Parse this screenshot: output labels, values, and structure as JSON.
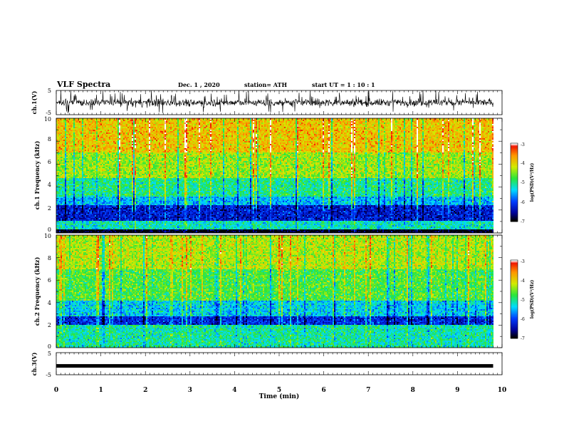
{
  "chart_data": {
    "type": "heatmap",
    "title": "VLF Spectra",
    "header": {
      "date": "Dec. 1 , 2020",
      "station": "station= ATH",
      "start": "start UT = 1 : 10 : 1"
    },
    "xlabel": "Time (min)",
    "xlim": [
      0,
      10
    ],
    "xticks": [
      "0",
      "1",
      "2",
      "3",
      "4",
      "5",
      "6",
      "7",
      "8",
      "9",
      "10"
    ],
    "data_end_min": 9.8,
    "panels": [
      {
        "type": "line",
        "ylabel": "ch.1(V)",
        "ylim": [
          -5,
          5
        ],
        "yticks": [
          "5",
          "-5"
        ],
        "signal": "noisy waveform fluctuating mostly between -2 and +2 V with spikes up to about +5 V"
      },
      {
        "type": "heatmap",
        "ylabel": "ch.1 Frequency (kHz)",
        "ylim": [
          0,
          10
        ],
        "yticks": [
          "0",
          "2",
          "4",
          "6",
          "8",
          "10"
        ],
        "bands": [
          {
            "from_khz": 0,
            "to_khz": 0.3,
            "level": -7.0
          },
          {
            "from_khz": 0.3,
            "to_khz": 1.0,
            "level": -5.2
          },
          {
            "from_khz": 1.0,
            "to_khz": 2.4,
            "level": -6.3
          },
          {
            "from_khz": 2.4,
            "to_khz": 3.2,
            "level": -5.5
          },
          {
            "from_khz": 3.2,
            "to_khz": 4.8,
            "level": -5.0
          },
          {
            "from_khz": 4.8,
            "to_khz": 7.0,
            "level": -4.4
          },
          {
            "from_khz": 7.0,
            "to_khz": 10.0,
            "level": -3.9
          }
        ],
        "colorbar": {
          "label": "log(PSD)(V²/Hz)",
          "range": [
            -7,
            -3
          ],
          "ticks": [
            "-3",
            "-4",
            "-5",
            "-6",
            "-7"
          ]
        }
      },
      {
        "type": "heatmap",
        "ylabel": "ch.2 Frequency (kHz)",
        "ylim": [
          0,
          10
        ],
        "yticks": [
          "0",
          "2",
          "4",
          "6",
          "8",
          "10"
        ],
        "bands": [
          {
            "from_khz": 0,
            "to_khz": 2.0,
            "level": -5.1
          },
          {
            "from_khz": 2.0,
            "to_khz": 2.8,
            "level": -6.2
          },
          {
            "from_khz": 2.8,
            "to_khz": 4.2,
            "level": -5.4
          },
          {
            "from_khz": 4.2,
            "to_khz": 7.0,
            "level": -4.7
          },
          {
            "from_khz": 7.0,
            "to_khz": 10.0,
            "level": -4.3
          }
        ],
        "colorbar": {
          "label": "log(PSD)(V²/Hz)",
          "range": [
            -7,
            -3
          ],
          "ticks": [
            "-3",
            "-4",
            "-5",
            "-6",
            "-7"
          ]
        }
      },
      {
        "type": "line",
        "ylabel": "ch.3(V)",
        "ylim": [
          -5,
          5
        ],
        "yticks": [
          "5",
          "-5"
        ],
        "signal": "near-constant level at about -1 V"
      }
    ]
  }
}
